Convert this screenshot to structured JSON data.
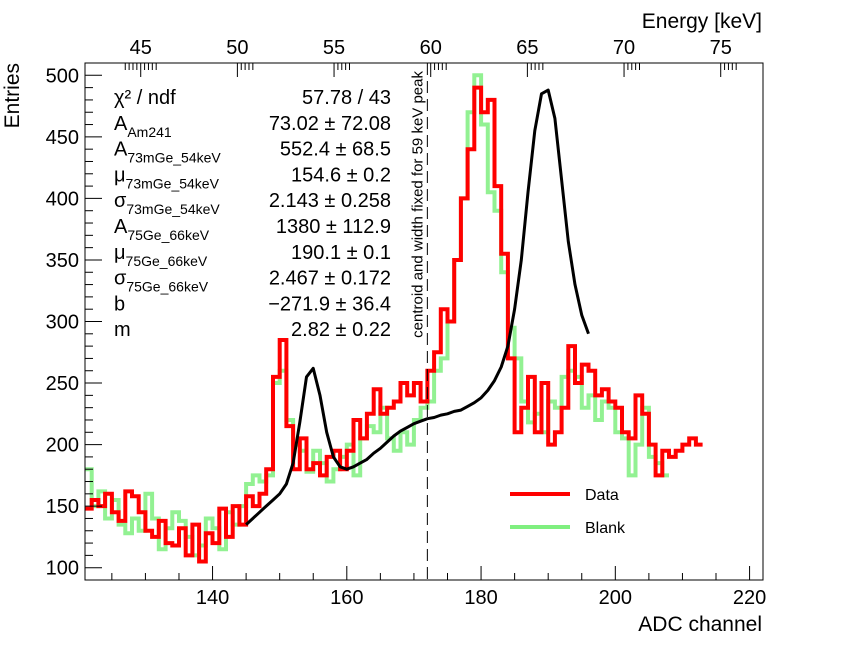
{
  "chart_data": {
    "type": "step",
    "xlabel": "ADC channel",
    "ylabel": "Entries",
    "top_axis_label": "Energy [keV]",
    "xlim": [
      121,
      222
    ],
    "ylim": [
      90,
      510
    ],
    "x_ticks": [
      140,
      160,
      180,
      200,
      220
    ],
    "y_ticks": [
      100,
      150,
      200,
      250,
      300,
      350,
      400,
      450,
      500
    ],
    "top_ticks": [
      {
        "label": "45",
        "x": 129.3
      },
      {
        "label": "50",
        "x": 143.7
      },
      {
        "label": "55",
        "x": 158.1
      },
      {
        "label": "60",
        "x": 172.5
      },
      {
        "label": "65",
        "x": 186.9
      },
      {
        "label": "70",
        "x": 201.3
      },
      {
        "label": "75",
        "x": 215.7
      }
    ],
    "bin_start": 121,
    "bin_width": 1,
    "series": [
      {
        "name": "Data",
        "color": "#ff0000",
        "values": [
          148,
          155,
          150,
          160,
          145,
          138,
          162,
          158,
          145,
          130,
          125,
          138,
          120,
          118,
          132,
          110,
          135,
          105,
          128,
          120,
          148,
          125,
          150,
          135,
          158,
          150,
          160,
          180,
          255,
          285,
          215,
          180,
          205,
          180,
          185,
          175,
          190,
          195,
          180,
          195,
          220,
          205,
          225,
          245,
          225,
          230,
          235,
          250,
          240,
          250,
          235,
          260,
          275,
          310,
          300,
          350,
          400,
          440,
          490,
          470,
          480,
          410,
          355,
          270,
          210,
          230,
          255,
          210,
          250,
          200,
          210,
          230,
          280,
          250,
          265,
          260,
          240,
          245,
          235,
          230,
          210,
          205,
          240,
          225,
          200,
          175,
          195,
          190,
          195,
          200,
          205,
          200
        ]
      },
      {
        "name": "Blank",
        "color": "#7fef7f",
        "values": [
          180,
          150,
          162,
          140,
          155,
          135,
          128,
          140,
          130,
          160,
          140,
          115,
          132,
          145,
          138,
          125,
          110,
          118,
          140,
          132,
          115,
          145,
          135,
          150,
          168,
          175,
          170,
          175,
          250,
          260,
          220,
          200,
          195,
          178,
          195,
          185,
          170,
          180,
          190,
          200,
          175,
          205,
          215,
          210,
          230,
          205,
          195,
          210,
          200,
          220,
          230,
          235,
          260,
          270,
          300,
          350,
          400,
          470,
          500,
          460,
          405,
          390,
          340,
          295,
          270,
          235,
          218,
          225,
          210,
          235,
          230,
          255,
          260,
          255,
          230,
          240,
          220,
          235,
          230,
          210,
          205,
          175,
          200,
          230,
          190,
          185,
          175
        ]
      }
    ],
    "fit_curve": {
      "name": "fit",
      "color": "#000000",
      "x": [
        145,
        146,
        147,
        148,
        149,
        150,
        151,
        152,
        153,
        154,
        155,
        156,
        157,
        158,
        159,
        160,
        161,
        162,
        163,
        164,
        165,
        166,
        167,
        168,
        169,
        170,
        171,
        172,
        173,
        174,
        175,
        176,
        177,
        178,
        179,
        180,
        181,
        182,
        183,
        184,
        185,
        186,
        187,
        188,
        189,
        190,
        191,
        192,
        193,
        194,
        195,
        196
      ],
      "y": [
        135,
        140,
        145,
        150,
        155,
        160,
        168,
        185,
        218,
        255,
        262,
        240,
        210,
        190,
        182,
        180,
        182,
        185,
        188,
        193,
        197,
        202,
        207,
        211,
        214,
        217,
        219,
        221,
        222,
        224,
        225,
        227,
        228,
        231,
        234,
        238,
        244,
        252,
        263,
        280,
        310,
        350,
        405,
        455,
        485,
        488,
        465,
        415,
        365,
        330,
        305,
        290
      ]
    },
    "stats": [
      {
        "name": "χ² / ndf",
        "value": "57.78 / 43"
      },
      {
        "name": "A_Am241",
        "value": "73.02 ± 72.08"
      },
      {
        "name": "A_73mGe_54keV",
        "value": "552.4 ± 68.5"
      },
      {
        "name": "μ_73mGe_54keV",
        "value": "154.6 ± 0.2"
      },
      {
        "name": "σ_73mGe_54keV",
        "value": "2.143 ± 0.258"
      },
      {
        "name": "A_75Ge_66keV",
        "value": "1380 ± 112.9"
      },
      {
        "name": "μ_75Ge_66keV",
        "value": "190.1 ± 0.1"
      },
      {
        "name": "σ_75Ge_66keV",
        "value": "2.467 ± 0.172"
      },
      {
        "name": "b",
        "value": "−271.9 ± 36.4"
      },
      {
        "name": "m",
        "value": "2.82 ± 0.22"
      }
    ],
    "annotation": {
      "text": "centroid and width fixed for 59 keV peak",
      "x": 172,
      "color": "#8b0000"
    },
    "legend": [
      {
        "label": "Data",
        "color": "#ff0000"
      },
      {
        "label": "Blank",
        "color": "#7fef7f"
      }
    ]
  }
}
